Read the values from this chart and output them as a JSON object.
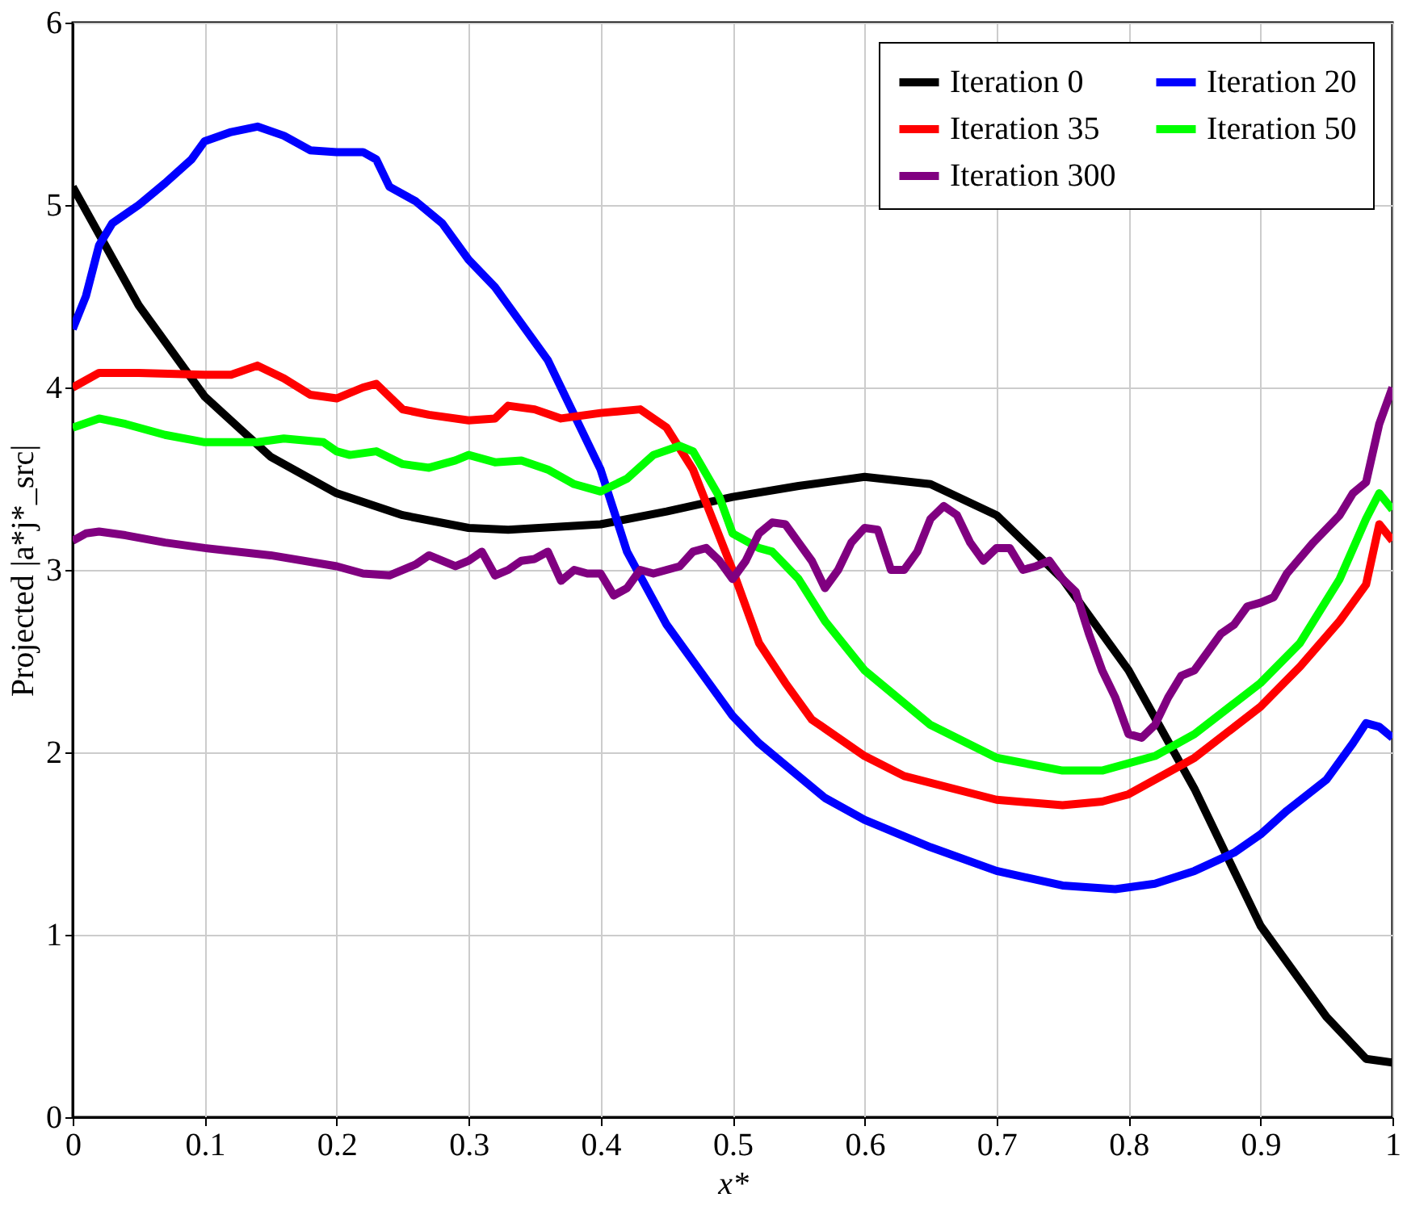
{
  "chart_data": {
    "type": "line",
    "xlabel": "x*",
    "ylabel": "Projected |a*j*_src|",
    "xlim": [
      0,
      1
    ],
    "ylim": [
      0,
      6
    ],
    "xticks": [
      0,
      0.1,
      0.2,
      0.3,
      0.4,
      0.5,
      0.6,
      0.7,
      0.8,
      0.9,
      1
    ],
    "yticks": [
      0,
      1,
      2,
      3,
      4,
      5,
      6
    ],
    "grid": true,
    "legend": "top right",
    "marker": "none",
    "line_style": "solid",
    "series": [
      {
        "name": "Iteration 0",
        "color": "#000000",
        "x": [
          0,
          0.05,
          0.1,
          0.15,
          0.2,
          0.25,
          0.3,
          0.33,
          0.4,
          0.45,
          0.5,
          0.55,
          0.6,
          0.65,
          0.7,
          0.75,
          0.8,
          0.85,
          0.9,
          0.95,
          0.98,
          1.0
        ],
        "values": [
          5.1,
          4.45,
          3.95,
          3.62,
          3.42,
          3.3,
          3.23,
          3.22,
          3.25,
          3.32,
          3.4,
          3.46,
          3.51,
          3.47,
          3.3,
          2.95,
          2.45,
          1.8,
          1.05,
          0.55,
          0.32,
          0.3
        ]
      },
      {
        "name": "Iteration 20",
        "color": "#0000ff",
        "x": [
          0,
          0.01,
          0.02,
          0.03,
          0.05,
          0.07,
          0.09,
          0.1,
          0.12,
          0.14,
          0.16,
          0.18,
          0.2,
          0.22,
          0.23,
          0.24,
          0.26,
          0.28,
          0.3,
          0.32,
          0.34,
          0.36,
          0.38,
          0.4,
          0.42,
          0.45,
          0.48,
          0.5,
          0.52,
          0.54,
          0.57,
          0.6,
          0.65,
          0.7,
          0.75,
          0.79,
          0.82,
          0.85,
          0.88,
          0.9,
          0.92,
          0.95,
          0.97,
          0.98,
          0.99,
          1.0
        ],
        "values": [
          4.32,
          4.5,
          4.78,
          4.9,
          5.0,
          5.12,
          5.25,
          5.35,
          5.4,
          5.43,
          5.38,
          5.3,
          5.29,
          5.29,
          5.25,
          5.1,
          5.02,
          4.9,
          4.7,
          4.55,
          4.35,
          4.15,
          3.85,
          3.55,
          3.1,
          2.7,
          2.4,
          2.2,
          2.05,
          1.93,
          1.75,
          1.63,
          1.48,
          1.35,
          1.27,
          1.25,
          1.28,
          1.35,
          1.45,
          1.55,
          1.68,
          1.85,
          2.05,
          2.16,
          2.14,
          2.08
        ]
      },
      {
        "name": "Iteration 35",
        "color": "#ff0000",
        "x": [
          0,
          0.02,
          0.05,
          0.1,
          0.12,
          0.14,
          0.16,
          0.18,
          0.2,
          0.22,
          0.23,
          0.25,
          0.27,
          0.3,
          0.32,
          0.33,
          0.35,
          0.37,
          0.4,
          0.43,
          0.45,
          0.47,
          0.5,
          0.52,
          0.54,
          0.56,
          0.6,
          0.63,
          0.7,
          0.75,
          0.78,
          0.8,
          0.85,
          0.9,
          0.93,
          0.96,
          0.98,
          0.99,
          1.0
        ],
        "values": [
          4.0,
          4.08,
          4.08,
          4.07,
          4.07,
          4.12,
          4.05,
          3.96,
          3.94,
          4.0,
          4.02,
          3.88,
          3.85,
          3.82,
          3.83,
          3.9,
          3.88,
          3.83,
          3.86,
          3.88,
          3.78,
          3.55,
          3.0,
          2.6,
          2.38,
          2.18,
          1.98,
          1.87,
          1.74,
          1.71,
          1.73,
          1.77,
          1.97,
          2.25,
          2.47,
          2.72,
          2.92,
          3.25,
          3.16
        ]
      },
      {
        "name": "Iteration 50",
        "color": "#00ff00",
        "x": [
          0,
          0.02,
          0.04,
          0.07,
          0.1,
          0.14,
          0.16,
          0.19,
          0.2,
          0.21,
          0.23,
          0.25,
          0.27,
          0.29,
          0.3,
          0.32,
          0.34,
          0.36,
          0.38,
          0.4,
          0.42,
          0.44,
          0.46,
          0.47,
          0.49,
          0.5,
          0.52,
          0.53,
          0.55,
          0.57,
          0.6,
          0.65,
          0.7,
          0.75,
          0.78,
          0.82,
          0.85,
          0.9,
          0.93,
          0.96,
          0.98,
          0.99,
          1.0
        ],
        "values": [
          3.78,
          3.83,
          3.8,
          3.74,
          3.7,
          3.7,
          3.72,
          3.7,
          3.65,
          3.63,
          3.65,
          3.58,
          3.56,
          3.6,
          3.63,
          3.59,
          3.6,
          3.55,
          3.47,
          3.43,
          3.5,
          3.63,
          3.68,
          3.65,
          3.4,
          3.2,
          3.12,
          3.1,
          2.95,
          2.72,
          2.45,
          2.15,
          1.97,
          1.9,
          1.9,
          1.98,
          2.1,
          2.38,
          2.6,
          2.95,
          3.28,
          3.42,
          3.33
        ]
      },
      {
        "name": "Iteration 300",
        "color": "#800080",
        "x": [
          0,
          0.01,
          0.02,
          0.04,
          0.07,
          0.1,
          0.15,
          0.2,
          0.22,
          0.24,
          0.26,
          0.27,
          0.28,
          0.29,
          0.3,
          0.31,
          0.32,
          0.33,
          0.34,
          0.35,
          0.36,
          0.37,
          0.38,
          0.39,
          0.4,
          0.41,
          0.42,
          0.43,
          0.44,
          0.45,
          0.46,
          0.47,
          0.48,
          0.49,
          0.5,
          0.51,
          0.52,
          0.53,
          0.54,
          0.55,
          0.56,
          0.57,
          0.58,
          0.59,
          0.6,
          0.61,
          0.62,
          0.63,
          0.64,
          0.65,
          0.66,
          0.67,
          0.68,
          0.69,
          0.7,
          0.71,
          0.72,
          0.73,
          0.74,
          0.75,
          0.76,
          0.77,
          0.78,
          0.79,
          0.8,
          0.81,
          0.82,
          0.83,
          0.84,
          0.85,
          0.86,
          0.87,
          0.88,
          0.89,
          0.9,
          0.91,
          0.92,
          0.94,
          0.96,
          0.97,
          0.98,
          0.99,
          1.0
        ],
        "values": [
          3.16,
          3.2,
          3.21,
          3.19,
          3.15,
          3.12,
          3.08,
          3.02,
          2.98,
          2.97,
          3.03,
          3.08,
          3.05,
          3.02,
          3.05,
          3.1,
          2.97,
          3.0,
          3.05,
          3.06,
          3.1,
          2.94,
          3.0,
          2.98,
          2.98,
          2.86,
          2.9,
          3.0,
          2.98,
          3.0,
          3.02,
          3.1,
          3.12,
          3.05,
          2.95,
          3.05,
          3.2,
          3.26,
          3.25,
          3.15,
          3.05,
          2.9,
          3.0,
          3.15,
          3.23,
          3.22,
          3.0,
          3.0,
          3.1,
          3.28,
          3.35,
          3.3,
          3.15,
          3.05,
          3.12,
          3.12,
          3.0,
          3.02,
          3.05,
          2.95,
          2.88,
          2.65,
          2.45,
          2.3,
          2.1,
          2.08,
          2.15,
          2.3,
          2.42,
          2.45,
          2.55,
          2.65,
          2.7,
          2.8,
          2.82,
          2.85,
          2.98,
          3.15,
          3.3,
          3.42,
          3.48,
          3.8,
          4.0
        ]
      }
    ]
  }
}
